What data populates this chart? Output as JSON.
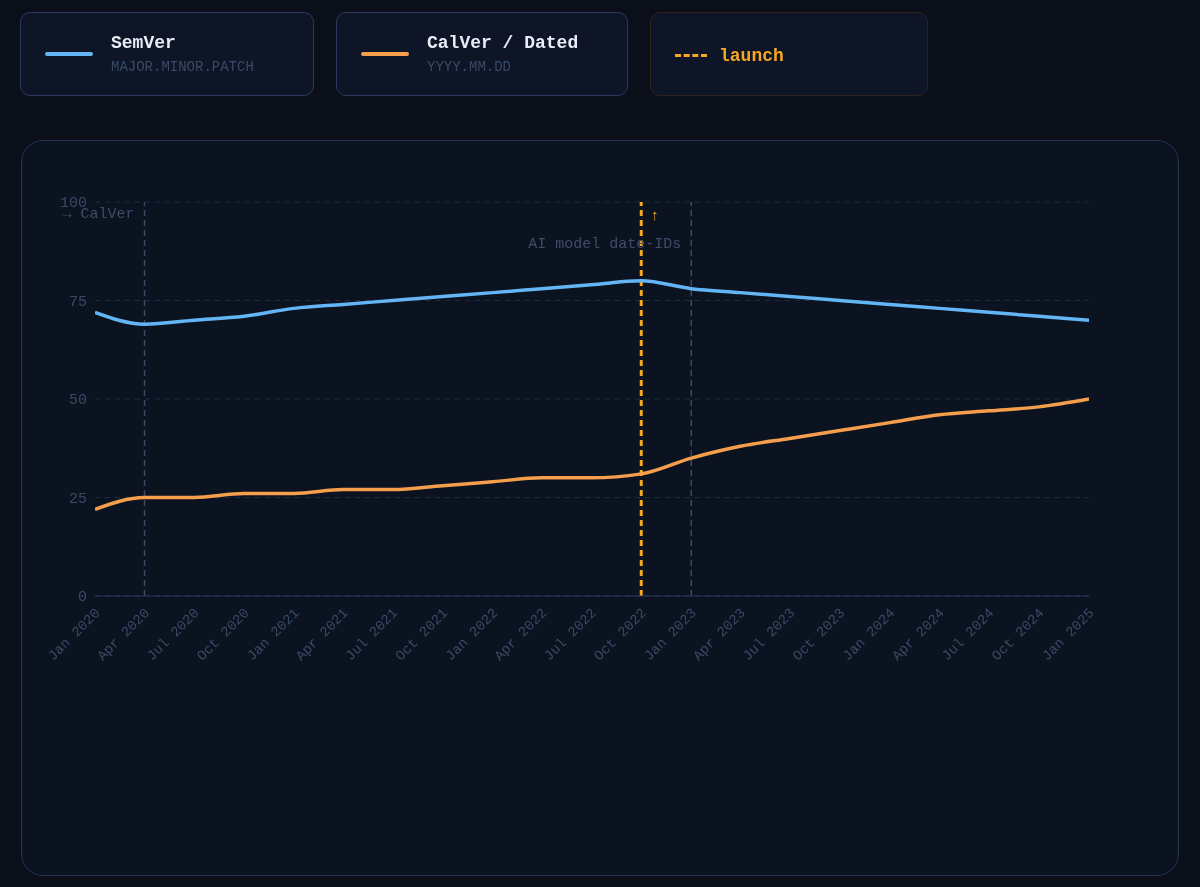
{
  "chart_data": {
    "type": "line",
    "x": [
      "2020-01",
      "2020-04",
      "2020-07",
      "2020-10",
      "2021-01",
      "2021-04",
      "2021-07",
      "2021-10",
      "2022-01",
      "2022-04",
      "2022-07",
      "2022-10",
      "2023-01",
      "2023-04",
      "2023-07",
      "2023-10",
      "2024-01",
      "2024-04",
      "2024-07",
      "2024-10",
      "2025-01"
    ],
    "series": [
      {
        "name": "SemVer",
        "color": "#64b5f6",
        "values": [
          72,
          69,
          70,
          71,
          73,
          74,
          75,
          76,
          77,
          78,
          79,
          80,
          78,
          77,
          76,
          75,
          74,
          73,
          72,
          71,
          70
        ]
      },
      {
        "name": "CalVer / Dated",
        "color": "#f59e4c",
        "values": [
          22,
          25,
          25,
          26,
          26,
          27,
          27,
          28,
          29,
          30,
          30,
          31,
          35,
          38,
          40,
          42,
          44,
          46,
          47,
          48,
          50
        ]
      }
    ],
    "annotations": [
      "MAJOR.MINOR.PATCH",
      "YYYY.MM.DD"
    ],
    "ref_lines": [
      {
        "axis": "x",
        "value": "2020-04",
        "label": "→ CalVer",
        "color": "#3a4a66",
        "line_style": "dashed"
      },
      {
        "axis": "x",
        "value": "2022-10",
        "label": "↑",
        "color": "#f5a623",
        "line_style": "dashed"
      },
      {
        "axis": "x",
        "value": "2023-01",
        "label": "AI model date-IDs",
        "color": "#3a4a66",
        "line_style": "dashed"
      }
    ],
    "legend_title": "launch",
    "xlim": [
      "2020-01",
      "2025-01"
    ],
    "xticks": [
      {
        "value": "2020-01",
        "label": "Jan 2020"
      },
      {
        "value": "2020-04",
        "label": "Apr 2020"
      },
      {
        "value": "2020-07",
        "label": "Jul 2020"
      },
      {
        "value": "2020-10",
        "label": "Oct 2020"
      },
      {
        "value": "2021-01",
        "label": "Jan 2021"
      },
      {
        "value": "2021-04",
        "label": "Apr 2021"
      },
      {
        "value": "2021-07",
        "label": "Jul 2021"
      },
      {
        "value": "2021-10",
        "label": "Oct 2021"
      },
      {
        "value": "2022-01",
        "label": "Jan 2022"
      },
      {
        "value": "2022-04",
        "label": "Apr 2022"
      },
      {
        "value": "2022-07",
        "label": "Jul 2022"
      },
      {
        "value": "2022-10",
        "label": "Oct 2022"
      },
      {
        "value": "2023-01",
        "label": "Jan 2023"
      },
      {
        "value": "2023-04",
        "label": "Apr 2023"
      },
      {
        "value": "2023-07",
        "label": "Jul 2023"
      },
      {
        "value": "2023-10",
        "label": "Oct 2023"
      },
      {
        "value": "2024-01",
        "label": "Jan 2024"
      },
      {
        "value": "2024-04",
        "label": "Apr 2024"
      },
      {
        "value": "2024-07",
        "label": "Jul 2024"
      },
      {
        "value": "2024-10",
        "label": "Oct 2024"
      },
      {
        "value": "2025-01",
        "label": "Jan 2025"
      }
    ],
    "ylim": [
      0,
      100
    ],
    "yticks": [
      0,
      25,
      50,
      75,
      100
    ],
    "grid": "y",
    "legend": "top",
    "marker": "none",
    "line_style": "solid"
  }
}
